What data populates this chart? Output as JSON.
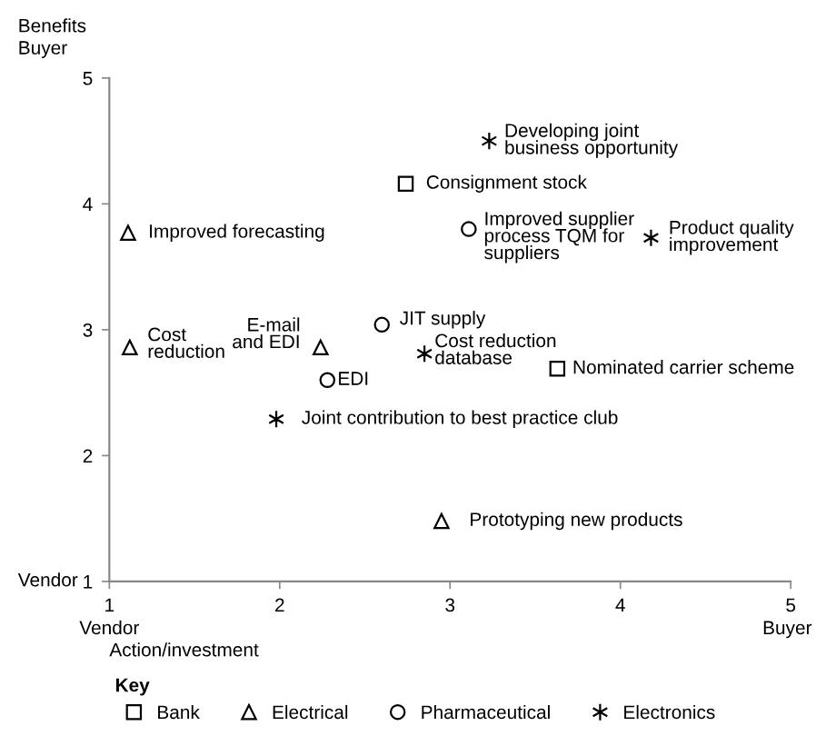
{
  "chart_data": {
    "type": "scatter",
    "xlabel": "Action/investment",
    "ylabel": "Benefits",
    "legend_title": "Key",
    "legend": "bottom",
    "grid": false,
    "xlim": [
      1,
      5
    ],
    "ylim": [
      1,
      5
    ],
    "xticks": [
      1,
      2,
      3,
      4,
      5
    ],
    "yticks": [
      1,
      2,
      3,
      4,
      5
    ],
    "series": [
      {
        "name": "Bank",
        "color": "#000000",
        "marker": "square",
        "x": [
          2.74,
          3.63
        ],
        "values": [
          4.16,
          2.69
        ]
      },
      {
        "name": "Electrical",
        "color": "#000000",
        "marker": "triangle",
        "x": [
          1.11,
          1.12,
          2.24,
          2.95
        ],
        "values": [
          3.77,
          2.86,
          2.86,
          1.48
        ]
      },
      {
        "name": "Pharmaceutical",
        "color": "#000000",
        "marker": "circle",
        "x": [
          3.11,
          2.6,
          2.28
        ],
        "values": [
          3.8,
          3.04,
          2.6
        ]
      },
      {
        "name": "Electronics",
        "color": "#000000",
        "marker": "cross",
        "x": [
          3.23,
          4.18,
          2.85,
          1.98
        ],
        "values": [
          4.5,
          3.73,
          2.81,
          2.29
        ]
      }
    ],
    "annotations": [
      {
        "text": "Developing joint\nbusiness opportunity",
        "x": 3.23,
        "y": 4.5
      },
      {
        "text": "Consignment stock",
        "x": 2.74,
        "y": 4.16
      },
      {
        "text": "Improved forecasting",
        "x": 1.11,
        "y": 3.77
      },
      {
        "text": "Improved supplier\nprocess TQM for\nsuppliers",
        "x": 3.11,
        "y": 3.8
      },
      {
        "text": "Product quality\nimprovement",
        "x": 4.18,
        "y": 3.73
      },
      {
        "text": "Cost\nreduction",
        "x": 1.12,
        "y": 2.86
      },
      {
        "text": "E-mail\nand EDI",
        "x": 2.24,
        "y": 2.86
      },
      {
        "text": "JIT supply",
        "x": 2.6,
        "y": 3.04
      },
      {
        "text": "Cost reduction\ndatabase",
        "x": 2.85,
        "y": 2.81
      },
      {
        "text": "Nominated carrier scheme",
        "x": 3.63,
        "y": 2.69
      },
      {
        "text": "EDI",
        "x": 2.28,
        "y": 2.6
      },
      {
        "text": "Joint contribution to best practice club",
        "x": 1.98,
        "y": 2.29
      },
      {
        "text": "Prototyping new products",
        "x": 2.95,
        "y": 1.48
      },
      "Buyer",
      "Vendor",
      "Vendor",
      "Buyer"
    ]
  }
}
